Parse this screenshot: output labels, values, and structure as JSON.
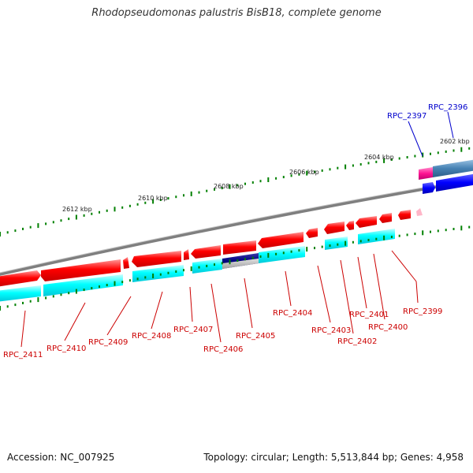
{
  "title": "Rhodopseudomonas palustris BisB18, complete genome",
  "footer": {
    "accession": "Accession: NC_007925",
    "summary": "Topology: circular; Length: 5,513,844 bp; Genes: 4,958"
  },
  "colors": {
    "forward_gene": "#ff0000",
    "reverse_gene": "#00ffff",
    "backbone": "#808080",
    "tick": "#008000",
    "label_red": "#cc0000",
    "label_blue": "#0000cc",
    "highlight_pink": "#ff1493",
    "highlight_blue": "#0000ff",
    "highlight_navy": "#000080",
    "highlight_steel": "#4682b4"
  },
  "scale_labels": [
    "2602 kbp",
    "2604 kbp",
    "2606 kbp",
    "2608 kbp",
    "2610 kbp",
    "2612 kbp"
  ],
  "gene_labels": [
    {
      "text": "RPC_2396",
      "color": "blue"
    },
    {
      "text": "RPC_2397",
      "color": "blue"
    },
    {
      "text": "RPC_2399",
      "color": "red"
    },
    {
      "text": "RPC_2400",
      "color": "red"
    },
    {
      "text": "RPC_2401",
      "color": "red"
    },
    {
      "text": "RPC_2402",
      "color": "red"
    },
    {
      "text": "RPC_2403",
      "color": "red"
    },
    {
      "text": "RPC_2404",
      "color": "red"
    },
    {
      "text": "RPC_2405",
      "color": "red"
    },
    {
      "text": "RPC_2406",
      "color": "red"
    },
    {
      "text": "RPC_2407",
      "color": "red"
    },
    {
      "text": "RPC_2408",
      "color": "red"
    },
    {
      "text": "RPC_2409",
      "color": "red"
    },
    {
      "text": "RPC_2410",
      "color": "red"
    },
    {
      "text": "RPC_2411",
      "color": "red"
    }
  ]
}
